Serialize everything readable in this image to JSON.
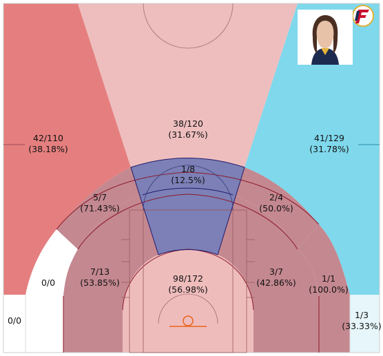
{
  "chart_data": {
    "type": "shot-chart",
    "title": "",
    "colors": {
      "red": "#e57f7f",
      "pink": "#eebebe",
      "blue": "#7fd8ec",
      "navy": "#7c80b6",
      "mauve": "#c48890",
      "lightpink": "#efbcbc",
      "palecyan": "#e6f6fa",
      "white": "#ffffff",
      "line": "#8b1a2a",
      "navyline": "#1f1a6a",
      "rim": "#e8641a"
    },
    "zones": [
      {
        "id": "left-corner-3",
        "made": 0,
        "attempted": 0,
        "label": "0/0",
        "pct_label": ""
      },
      {
        "id": "left-wing-3",
        "made": 42,
        "attempted": 110,
        "label": "42/110",
        "pct_label": "(38.18%)"
      },
      {
        "id": "top-3",
        "made": 38,
        "attempted": 120,
        "label": "38/120",
        "pct_label": "(31.67%)"
      },
      {
        "id": "right-wing-3",
        "made": 41,
        "attempted": 129,
        "label": "41/129",
        "pct_label": "(31.78%)"
      },
      {
        "id": "right-corner-3",
        "made": 1,
        "attempted": 3,
        "label": "1/3",
        "pct_label": "(33.33%)"
      },
      {
        "id": "left-baseline-long-2",
        "made": 0,
        "attempted": 0,
        "label": "0/0",
        "pct_label": ""
      },
      {
        "id": "left-wing-long-2",
        "made": 5,
        "attempted": 7,
        "label": "5/7",
        "pct_label": "(71.43%)"
      },
      {
        "id": "top-long-2",
        "made": 1,
        "attempted": 8,
        "label": "1/8",
        "pct_label": "(12.5%)"
      },
      {
        "id": "right-wing-long-2",
        "made": 2,
        "attempted": 4,
        "label": "2/4",
        "pct_label": "(50.0%)"
      },
      {
        "id": "right-baseline-long-2",
        "made": 1,
        "attempted": 1,
        "label": "1/1",
        "pct_label": "(100.0%)"
      },
      {
        "id": "left-midrange",
        "made": 7,
        "attempted": 13,
        "label": "7/13",
        "pct_label": "(53.85%)"
      },
      {
        "id": "right-midrange",
        "made": 3,
        "attempted": 7,
        "label": "3/7",
        "pct_label": "(42.86%)"
      },
      {
        "id": "restricted-area",
        "made": 98,
        "attempted": 172,
        "label": "98/172",
        "pct_label": "(56.98%)"
      }
    ]
  },
  "images": {
    "team_logo": "indiana-fever-logo",
    "player_photo": "player-headshot"
  }
}
